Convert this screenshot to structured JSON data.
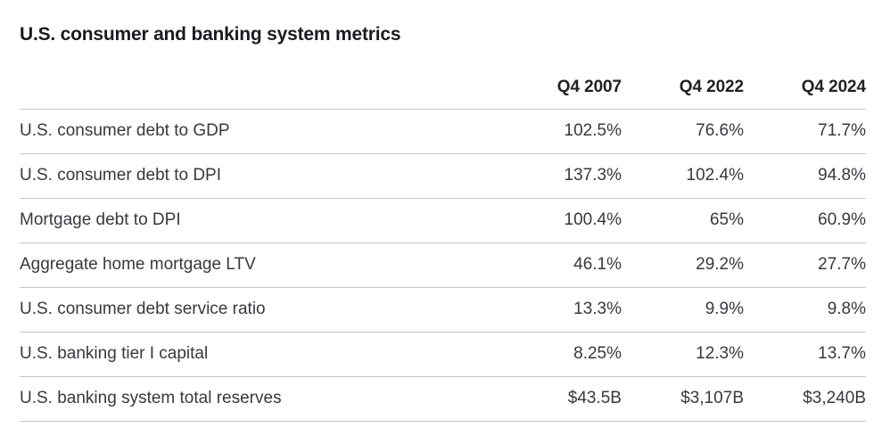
{
  "chart_data": {
    "type": "table",
    "title": "U.S. consumer and banking system metrics",
    "columns": [
      "Q4 2007",
      "Q4 2022",
      "Q4 2024"
    ],
    "rows": [
      {
        "label": "U.S. consumer debt to GDP",
        "values": [
          "102.5%",
          "76.6%",
          "71.7%"
        ],
        "numeric_values": [
          102.5,
          76.6,
          71.7
        ],
        "unit": "%"
      },
      {
        "label": "U.S. consumer debt to DPI",
        "values": [
          "137.3%",
          "102.4%",
          "94.8%"
        ],
        "numeric_values": [
          137.3,
          102.4,
          94.8
        ],
        "unit": "%"
      },
      {
        "label": "Mortgage debt to DPI",
        "values": [
          "100.4%",
          "65%",
          "60.9%"
        ],
        "numeric_values": [
          100.4,
          65,
          60.9
        ],
        "unit": "%"
      },
      {
        "label": "Aggregate home mortgage LTV",
        "values": [
          "46.1%",
          "29.2%",
          "27.7%"
        ],
        "numeric_values": [
          46.1,
          29.2,
          27.7
        ],
        "unit": "%"
      },
      {
        "label": "U.S. consumer debt service ratio",
        "values": [
          "13.3%",
          "9.9%",
          "9.8%"
        ],
        "numeric_values": [
          13.3,
          9.9,
          9.8
        ],
        "unit": "%"
      },
      {
        "label": "U.S. banking tier I capital",
        "values": [
          "8.25%",
          "12.3%",
          "13.7%"
        ],
        "numeric_values": [
          8.25,
          12.3,
          13.7
        ],
        "unit": "%"
      },
      {
        "label": "U.S. banking system total reserves",
        "values": [
          "$43.5B",
          "$3,107B",
          "$3,240B"
        ],
        "numeric_values": [
          43.5,
          3107,
          3240
        ],
        "unit": "$B"
      }
    ],
    "layout": {
      "grid": "horizontal-row-dividers",
      "numeric_alignment": "right",
      "legend": "none"
    }
  },
  "colors": {
    "background": "#ffffff",
    "title_text": "#1a1b1e",
    "header_text": "#202226",
    "body_text": "#37393d",
    "divider": "#c5c6c8"
  }
}
